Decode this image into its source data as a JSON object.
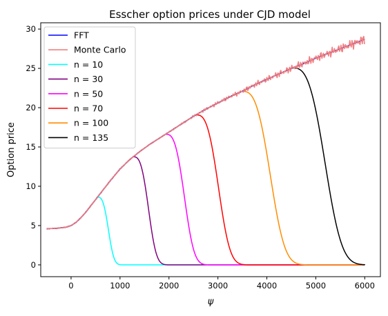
{
  "chart_data": {
    "type": "line",
    "title": "Esscher option prices under CJD model",
    "xlabel": "ψ",
    "ylabel": "Option price",
    "xlim": [
      -620,
      6320
    ],
    "ylim": [
      -1.5,
      30.8
    ],
    "xticks": [
      0,
      1000,
      2000,
      3000,
      4000,
      5000,
      6000
    ],
    "yticks": [
      0,
      5,
      10,
      15,
      20,
      25,
      30
    ],
    "xtick_labels": [
      "0",
      "1000",
      "2000",
      "3000",
      "4000",
      "5000",
      "6000"
    ],
    "ytick_labels": [
      "0",
      "5",
      "10",
      "15",
      "20",
      "25",
      "30"
    ],
    "grid": false,
    "legend": "top-left",
    "base_curve": {
      "x": [
        -500,
        -300,
        -100,
        0,
        100,
        200,
        300,
        400,
        500,
        600,
        800,
        1000,
        1200,
        1400,
        1600,
        1800,
        2000,
        2250,
        2500,
        2750,
        3000,
        3250,
        3500,
        3750,
        4000,
        4250,
        4500,
        4750,
        5000,
        5250,
        5500,
        5750,
        6000
      ],
      "y": [
        4.6,
        4.65,
        4.8,
        5.0,
        5.4,
        6.0,
        6.7,
        7.5,
        8.3,
        9.1,
        10.7,
        12.2,
        13.4,
        14.4,
        15.3,
        16.1,
        16.9,
        17.9,
        18.9,
        19.8,
        20.6,
        21.4,
        22.1,
        22.9,
        23.6,
        24.3,
        25.0,
        25.6,
        26.3,
        26.9,
        27.5,
        28.1,
        28.7
      ]
    },
    "series": [
      {
        "name": "FFT",
        "color": "#0000ff",
        "kind": "base"
      },
      {
        "name": "Monte Carlo",
        "color": "#f08080",
        "kind": "noisy"
      },
      {
        "name": "$n = 10$",
        "label": "n = 10",
        "color": "#00ffff",
        "kind": "cutoff",
        "peak_x": 540,
        "decay": 300
      },
      {
        "name": "$n = 30$",
        "label": "n = 30",
        "color": "#800080",
        "kind": "cutoff",
        "peak_x": 1270,
        "decay": 420
      },
      {
        "name": "$n = 50$",
        "label": "n = 50",
        "color": "#ff00ff",
        "kind": "cutoff",
        "peak_x": 1930,
        "decay": 520
      },
      {
        "name": "$n = 70$",
        "label": "n = 70",
        "color": "#ff0000",
        "kind": "cutoff",
        "peak_x": 2550,
        "decay": 620
      },
      {
        "name": "$n = 100$",
        "label": "n = 100",
        "color": "#ff8c00",
        "kind": "cutoff",
        "peak_x": 3490,
        "decay": 780
      },
      {
        "name": "$n = 135$",
        "label": "n = 135",
        "color": "#000000",
        "kind": "cutoff",
        "peak_x": 4520,
        "decay": 900
      }
    ]
  }
}
